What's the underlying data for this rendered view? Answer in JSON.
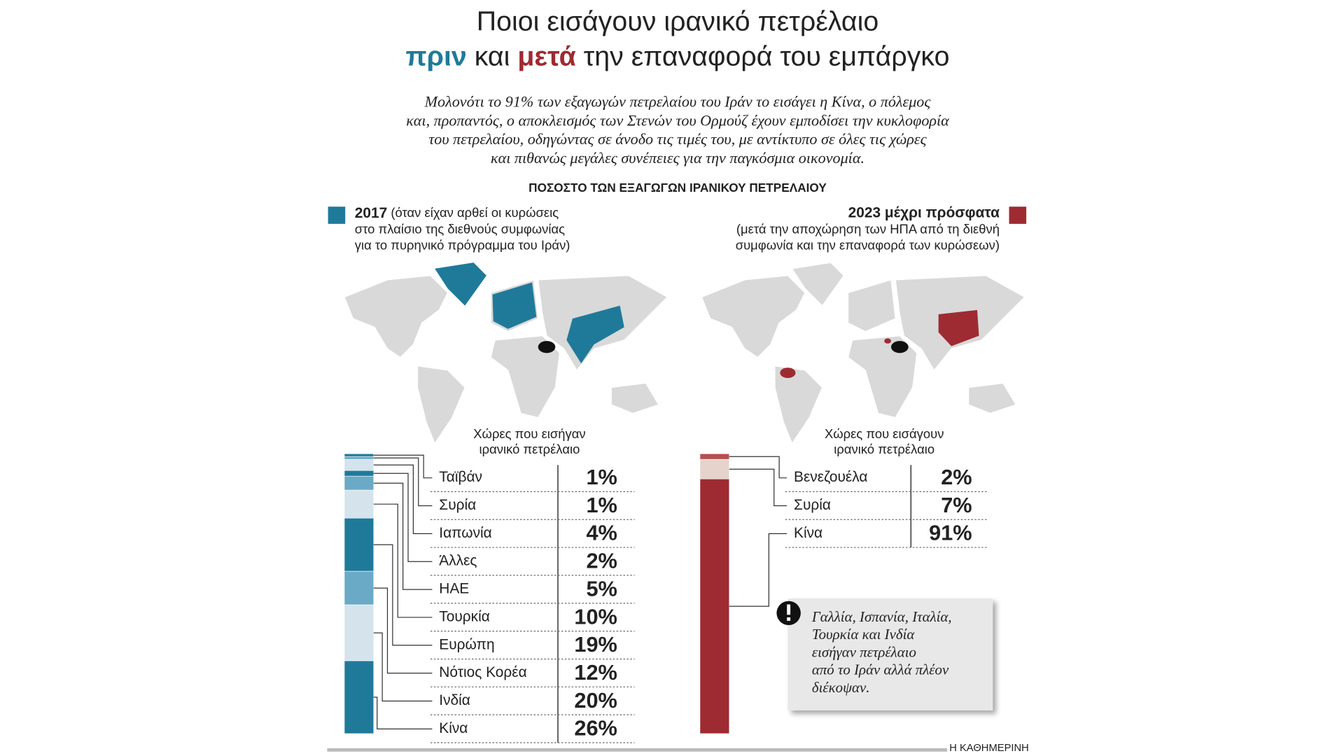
{
  "header": {
    "title_line1": "Ποιοι εισάγουν ιρανικό πετρέλαιο",
    "title_line2": [
      "πριν",
      "και",
      "μετά",
      "την επαναφορά του εμπάργκο"
    ],
    "intro": [
      "Μολονότι το 91% των εξαγωγών πετρελαίου του Ιράν το εισάγει η Κίνα, ο πόλεμος",
      "και, προπαντός, ο αποκλεισμός των Στενών του Ορμούζ έχουν εμποδίσει την κυκλοφορία",
      "του πετρελαίου, οδηγώντας σε άνοδο τις τιμές του, με αντίκτυπο σε όλες τις χώρες",
      "και πιθανώς μεγάλες συνέπειες για την παγκόσμια οικονομία."
    ],
    "section_title": "ΠΟΣΟΣΤΟ ΤΩΝ ΕΞΑΓΩΓΩΝ ΙΡΑΝΙΚΟΥ ΠΕΤΡΕΛΑΙΟΥ"
  },
  "chart_data": [
    {
      "type": "stacked_bar",
      "title": "2017",
      "description": [
        "(όταν είχαν αρθεί οι κυρώσεις",
        "στο πλαίσιο της διεθνούς συμφωνίας",
        "για το πυρηνικό πρόγραμμα του Ιράν)"
      ],
      "table_title": [
        "Χώρες που εισήγαν",
        "ιρανικό πετρέλαιο"
      ],
      "color": "#1f7a99",
      "categories": [
        "Ταϊβάν",
        "Συρία",
        "Ιαπωνία",
        "Άλλες",
        "ΗΑΕ",
        "Τουρκία",
        "Ευρώπη",
        "Νότιος Κορέα",
        "Ινδία",
        "Κίνα"
      ],
      "values": [
        1,
        1,
        4,
        2,
        5,
        10,
        19,
        12,
        20,
        26
      ],
      "value_labels": [
        "1%",
        "1%",
        "4%",
        "2%",
        "5%",
        "10%",
        "19%",
        "12%",
        "20%",
        "26%"
      ],
      "colors": [
        "#1f7a99",
        "#6aaac6",
        "#d4e3ec",
        "#1f7a99",
        "#6aaac6",
        "#d4e3ec",
        "#1f7a99",
        "#6aaac6",
        "#d4e3ec",
        "#1f7a99"
      ]
    },
    {
      "type": "stacked_bar",
      "title": "2023 μέχρι πρόσφατα",
      "description": [
        "(μετά την αποχώρηση των ΗΠΑ από τη διεθνή",
        "συμφωνία και την επαναφορά των κυρώσεων)"
      ],
      "table_title": [
        "Χώρες που εισάγουν",
        "ιρανικό πετρέλαιο"
      ],
      "color": "#9e2b32",
      "categories": [
        "Βενεζουέλα",
        "Συρία",
        "Κίνα"
      ],
      "values": [
        2,
        7,
        91
      ],
      "value_labels": [
        "2%",
        "7%",
        "91%"
      ],
      "colors": [
        "#b5504f",
        "#e6d3cc",
        "#9e2b32"
      ]
    }
  ],
  "note": [
    "Γαλλία, Ισπανία, Ιταλία,",
    "Τουρκία και Ινδία",
    "εισήγαν πετρέλαιο",
    "από το Ιράν αλλά πλέον",
    "διέκοψαν."
  ],
  "source": "Η ΚΑΘΗΜΕΡΙΝΗ"
}
